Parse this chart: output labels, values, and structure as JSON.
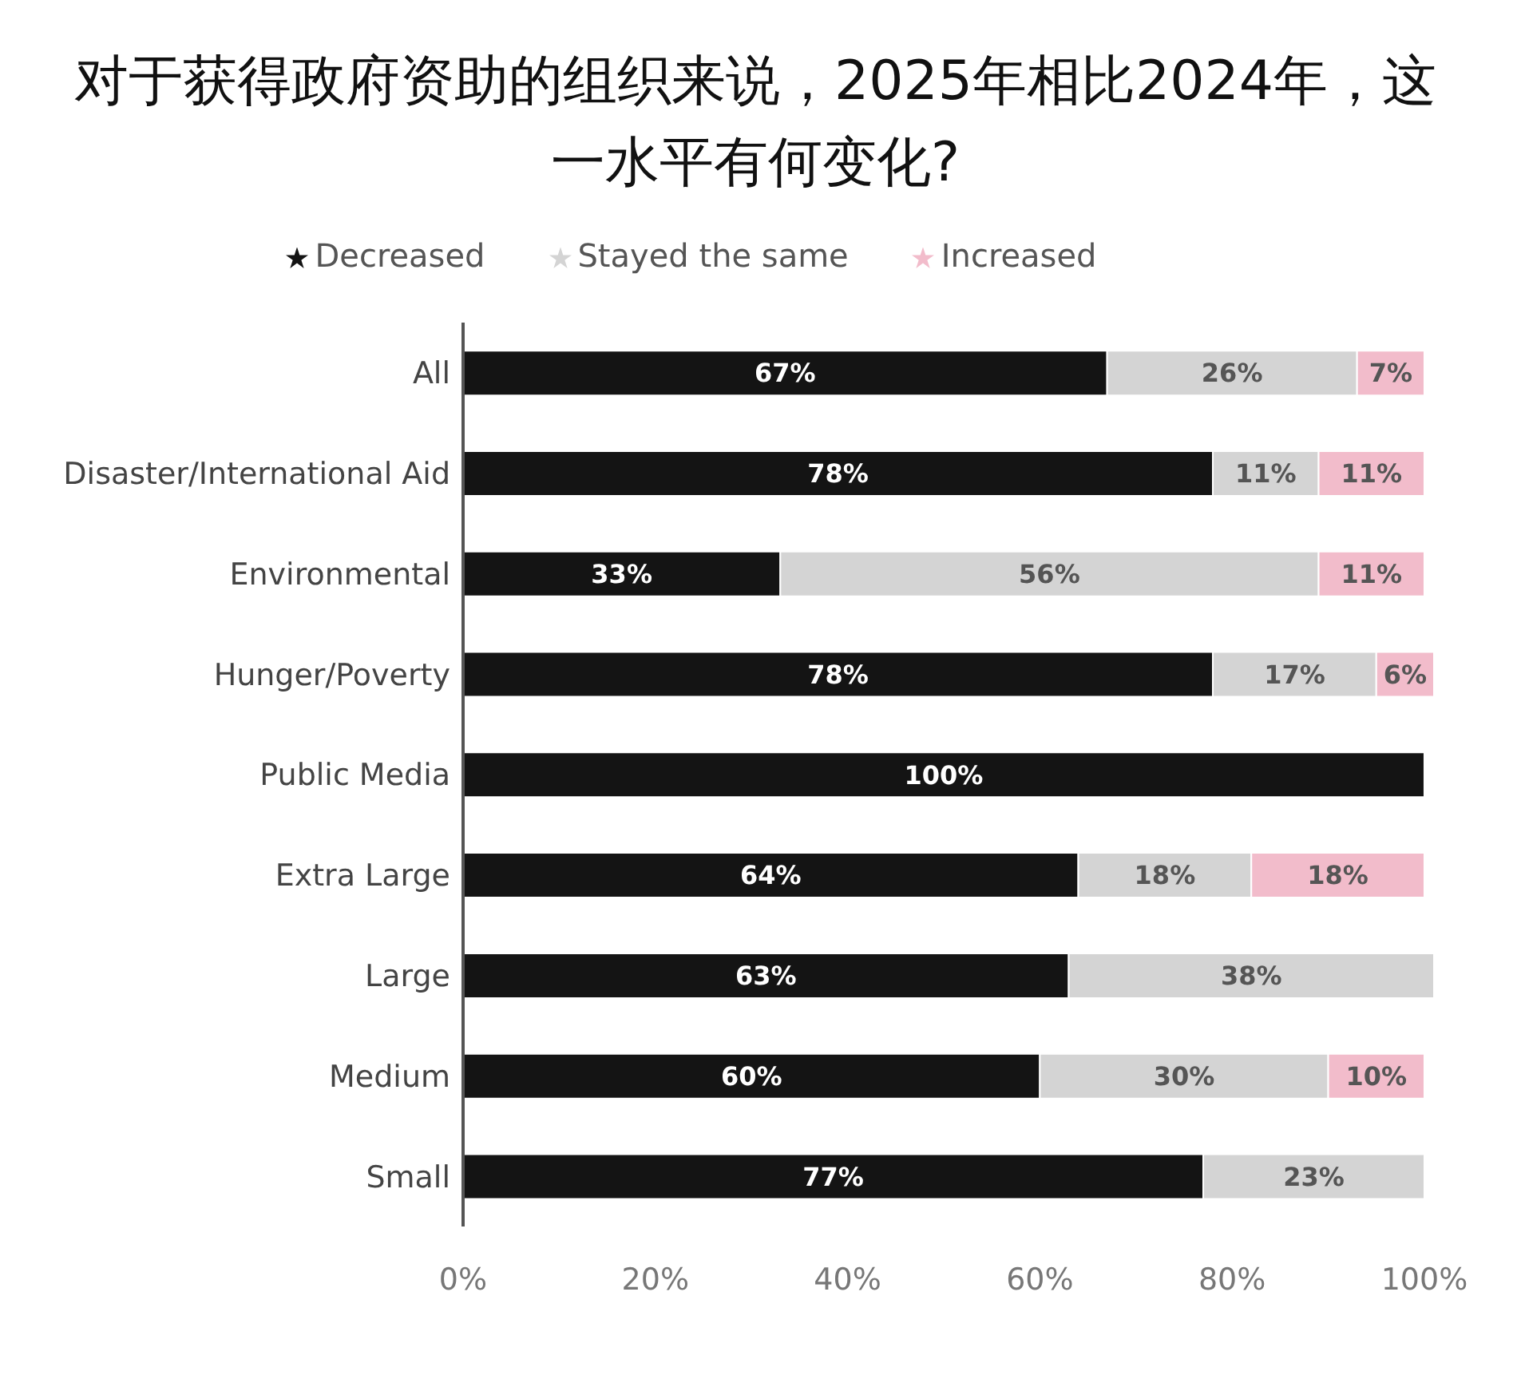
{
  "chart_data": {
    "type": "bar",
    "orientation": "horizontal",
    "stacked": true,
    "title": "对于获得政府资助的组织来说，2025年相比2024年，这一水平有何变化?",
    "categories": [
      "All",
      "Disaster/International Aid",
      "Environmental",
      "Hunger/Poverty",
      "Public Media",
      "Extra Large",
      "Large",
      "Medium",
      "Small"
    ],
    "series": [
      {
        "name": "Decreased",
        "color": "#141414",
        "values": [
          67,
          78,
          33,
          78,
          100,
          64,
          63,
          60,
          77
        ],
        "value_labels": [
          "67%",
          "78%",
          "33%",
          "78%",
          "100%",
          "64%",
          "63%",
          "60%",
          "77%"
        ]
      },
      {
        "name": "Stayed the same",
        "color": "#d4d4d4",
        "values": [
          26,
          11,
          56,
          17,
          null,
          18,
          38,
          30,
          23
        ],
        "value_labels": [
          "26%",
          "11%",
          "56%",
          "17%",
          null,
          "18%",
          "38%",
          "30%",
          "23%"
        ]
      },
      {
        "name": "Increased",
        "color": "#f2bccb",
        "values": [
          7,
          11,
          11,
          6,
          null,
          18,
          null,
          10,
          null
        ],
        "value_labels": [
          "7%",
          "11%",
          "11%",
          "6%",
          null,
          "18%",
          null,
          "10%",
          null
        ]
      }
    ],
    "xlim": [
      0,
      101
    ],
    "xticks": [
      {
        "value": 0,
        "label": "0%"
      },
      {
        "value": 20,
        "label": "20%"
      },
      {
        "value": 40,
        "label": "40%"
      },
      {
        "value": 60,
        "label": "60%"
      },
      {
        "value": 80,
        "label": "80%"
      },
      {
        "value": 100,
        "label": "100%"
      }
    ],
    "legend": "top",
    "marker": "star"
  }
}
